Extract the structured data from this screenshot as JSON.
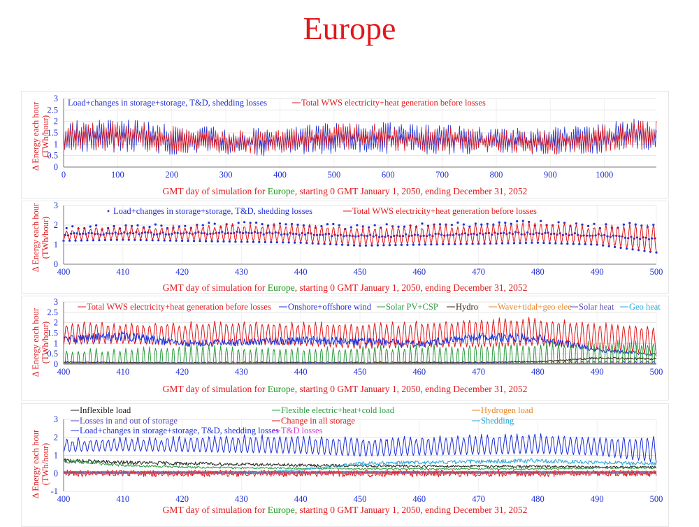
{
  "page": {
    "title": "Europe"
  },
  "colors": {
    "red": "#e0181b",
    "blue": "#1f2fd6",
    "green": "#2e9b40",
    "brown": "#3b2417",
    "orange": "#e8862a",
    "purple": "#5549b0",
    "cyan": "#2aa6d8",
    "black": "#222222",
    "magenta": "#d23fd0",
    "caption_region": "#1a9a1a"
  },
  "x_caption": {
    "prefix": "GMT day of simulation for ",
    "region": "Europe",
    "suffix": ", starting 0 GMT January 1, 2050, ending December 31, 2052"
  },
  "y_label": {
    "line1": "Δ Energy each hour",
    "line2": "(TWh/hour)"
  },
  "chart_data": [
    {
      "id": "panel-1",
      "type": "line",
      "xlim": [
        0,
        1096
      ],
      "ylim": [
        0,
        3
      ],
      "xticks": [
        0,
        100,
        200,
        300,
        400,
        500,
        600,
        700,
        800,
        900,
        1000
      ],
      "yticks": [
        0,
        0.5,
        1,
        1.5,
        2,
        2.5,
        3
      ],
      "ytick_labels": [
        "0",
        "0.5",
        "1",
        "1.5",
        "2",
        "2.5",
        "3"
      ],
      "grid": true,
      "legend_position": "top",
      "series": [
        {
          "name": "Load+changes in storage+storage, T&D, shedding losses",
          "color": "#1f2fd6",
          "style": "line",
          "min_y": [
            0.65,
            0.6,
            0.55,
            0.5,
            0.45,
            0.55,
            0.65,
            0.55,
            0.55,
            0.5,
            0.45,
            0.55,
            0.65
          ],
          "max_y": [
            2.05,
            2.15,
            1.95,
            1.8,
            1.7,
            1.9,
            2.05,
            1.9,
            1.85,
            1.75,
            1.75,
            1.95,
            2.25
          ]
        },
        {
          "name": "Total WWS electricity+heat generation before losses",
          "color": "#e0181b",
          "style": "line",
          "min_y": [
            0.75,
            0.7,
            0.65,
            0.6,
            0.55,
            0.65,
            0.75,
            0.65,
            0.65,
            0.6,
            0.55,
            0.65,
            0.75
          ],
          "max_y": [
            1.95,
            2.05,
            1.85,
            1.7,
            1.6,
            1.8,
            1.95,
            1.8,
            1.75,
            1.65,
            1.65,
            1.85,
            2.15
          ]
        }
      ],
      "profile_x": [
        0,
        91,
        182,
        274,
        365,
        456,
        547,
        638,
        730,
        821,
        912,
        1004,
        1096
      ]
    },
    {
      "id": "panel-2",
      "type": "line",
      "xlim": [
        400,
        500
      ],
      "ylim": [
        0,
        3
      ],
      "xticks": [
        400,
        410,
        420,
        430,
        440,
        450,
        460,
        470,
        480,
        490,
        500
      ],
      "yticks": [
        0,
        1,
        2,
        3
      ],
      "ytick_labels": [
        "0",
        "1",
        "2",
        "3"
      ],
      "grid": true,
      "legend_position": "top",
      "series": [
        {
          "name": "Load+changes in storage+storage, T&D, shedding losses",
          "color": "#1f2fd6",
          "style": "dotted",
          "daily_peak": [
            1.85,
            1.9,
            1.95,
            2.05,
            2.0,
            1.9,
            1.95,
            2.05,
            2.1,
            1.95,
            2.0
          ],
          "daily_trough": [
            1.2,
            1.25,
            1.2,
            1.15,
            1.1,
            0.95,
            1.0,
            1.05,
            1.1,
            1.0,
            0.6
          ]
        },
        {
          "name": "Total WWS electricity+heat generation before losses",
          "color": "#e0181b",
          "style": "line",
          "daily_peak": [
            1.8,
            1.85,
            1.9,
            2.0,
            1.95,
            1.85,
            1.9,
            2.0,
            2.05,
            1.9,
            1.95
          ],
          "daily_trough": [
            1.25,
            1.3,
            1.25,
            1.2,
            1.15,
            1.0,
            1.05,
            1.1,
            1.15,
            1.05,
            0.65
          ]
        }
      ],
      "profile_x": [
        400,
        410,
        420,
        430,
        440,
        450,
        460,
        470,
        480,
        490,
        500
      ]
    },
    {
      "id": "panel-3",
      "type": "line",
      "xlim": [
        400,
        500
      ],
      "ylim": [
        0,
        3
      ],
      "xticks": [
        400,
        410,
        420,
        430,
        440,
        450,
        460,
        470,
        480,
        490,
        500
      ],
      "yticks": [
        0,
        0.5,
        1,
        1.5,
        2,
        2.5,
        3
      ],
      "ytick_labels": [
        "0",
        "0.5",
        "1",
        "1.5",
        "2",
        "2.5",
        "3"
      ],
      "grid": true,
      "legend_position": "top",
      "series": [
        {
          "name": "Total WWS electricity+heat generation before losses",
          "color": "#e0181b",
          "daily_peak": [
            1.95,
            1.9,
            1.95,
            2.0,
            1.95,
            1.9,
            2.0,
            2.1,
            2.15,
            1.9,
            1.75
          ],
          "daily_trough": [
            0.95,
            1.0,
            0.9,
            0.95,
            0.9,
            0.75,
            0.8,
            0.85,
            0.9,
            0.7,
            0.5
          ]
        },
        {
          "name": "Onshore+offshore wind",
          "color": "#1f2fd6",
          "level": [
            1.2,
            1.35,
            1.0,
            1.05,
            1.15,
            1.1,
            1.0,
            1.3,
            1.25,
            0.7,
            0.45
          ]
        },
        {
          "name": "Solar PV+CSP",
          "color": "#2e9b40",
          "daily_peak": [
            0.65,
            0.7,
            0.85,
            0.8,
            0.75,
            0.8,
            0.85,
            0.9,
            0.95,
            1.0,
            1.05
          ]
        },
        {
          "name": "Hydro",
          "color": "#3b2417",
          "level": [
            0.1,
            0.08,
            0.07,
            0.07,
            0.08,
            0.07,
            0.08,
            0.08,
            0.12,
            0.3,
            0.25
          ]
        },
        {
          "name": "Wave+tidal+geo elec",
          "color": "#e8862a",
          "level": [
            0.04,
            0.04,
            0.04,
            0.04,
            0.04,
            0.04,
            0.04,
            0.04,
            0.05,
            0.05,
            0.05
          ]
        },
        {
          "name": "Solar heat",
          "color": "#5549b0",
          "daily_peak": [
            0.1,
            0.1,
            0.1,
            0.12,
            0.12,
            0.12,
            0.13,
            0.13,
            0.14,
            0.15,
            0.15
          ]
        },
        {
          "name": "Geo heat",
          "color": "#2aa6d8",
          "level": [
            0.03,
            0.03,
            0.03,
            0.03,
            0.03,
            0.03,
            0.03,
            0.03,
            0.03,
            0.03,
            0.03
          ]
        }
      ],
      "profile_x": [
        400,
        410,
        420,
        430,
        440,
        450,
        460,
        470,
        480,
        490,
        500
      ]
    },
    {
      "id": "panel-4",
      "type": "line",
      "xlim": [
        400,
        500
      ],
      "ylim": [
        -1,
        3
      ],
      "xticks": [
        400,
        410,
        420,
        430,
        440,
        450,
        460,
        470,
        480,
        490,
        500
      ],
      "yticks": [
        -1,
        0,
        1,
        2,
        3
      ],
      "ytick_labels": [
        "-1",
        "0",
        "1",
        "2",
        "3"
      ],
      "grid": true,
      "legend_position": "top",
      "series": [
        {
          "name": "Inflexible load",
          "color": "#222222",
          "level": [
            0.7,
            0.6,
            0.55,
            0.5,
            0.45,
            0.42,
            0.4,
            0.4,
            0.38,
            0.35,
            0.35
          ]
        },
        {
          "name": "Flexible electric+heat+cold load",
          "color": "#2e9b40",
          "level": [
            0.7,
            0.45,
            0.35,
            0.3,
            0.28,
            0.25,
            0.25,
            0.25,
            0.25,
            0.3,
            0.3
          ]
        },
        {
          "name": "Hydrogen load",
          "color": "#e8862a",
          "level": [
            0.08,
            0.08,
            0.08,
            0.08,
            0.08,
            0.08,
            0.08,
            0.08,
            0.08,
            0.08,
            0.08
          ]
        },
        {
          "name": "Losses in and out of storage",
          "color": "#5549b0",
          "level": [
            0.05,
            0.05,
            0.05,
            0.05,
            0.05,
            0.05,
            0.05,
            0.05,
            0.05,
            0.05,
            0.05
          ]
        },
        {
          "name": "Change in all storage",
          "color": "#e0181b",
          "level": [
            0.0,
            0.0,
            0.0,
            0.0,
            0.0,
            0.0,
            0.0,
            0.0,
            0.0,
            0.0,
            0.0
          ]
        },
        {
          "name": "Shedding",
          "color": "#2aa6d8",
          "level": [
            0.0,
            0.0,
            0.0,
            0.0,
            0.2,
            0.55,
            0.6,
            0.65,
            0.7,
            0.6,
            0.55
          ]
        },
        {
          "name": "Load+changes in storage+storage, T&D, shedding losses",
          "color": "#1f2fd6",
          "daily_peak": [
            1.85,
            1.9,
            1.95,
            2.05,
            2.0,
            1.9,
            1.95,
            2.05,
            2.1,
            1.95,
            2.0
          ],
          "daily_trough": [
            1.2,
            1.25,
            1.2,
            1.15,
            1.1,
            0.95,
            1.0,
            1.05,
            1.1,
            1.0,
            0.6
          ]
        },
        {
          "name": "T&D losses",
          "color": "#d23fd0",
          "level": [
            0.1,
            0.1,
            0.1,
            0.1,
            0.1,
            0.1,
            0.1,
            0.1,
            0.1,
            0.1,
            0.1
          ]
        }
      ],
      "profile_x": [
        400,
        410,
        420,
        430,
        440,
        450,
        460,
        470,
        480,
        490,
        500
      ]
    }
  ]
}
